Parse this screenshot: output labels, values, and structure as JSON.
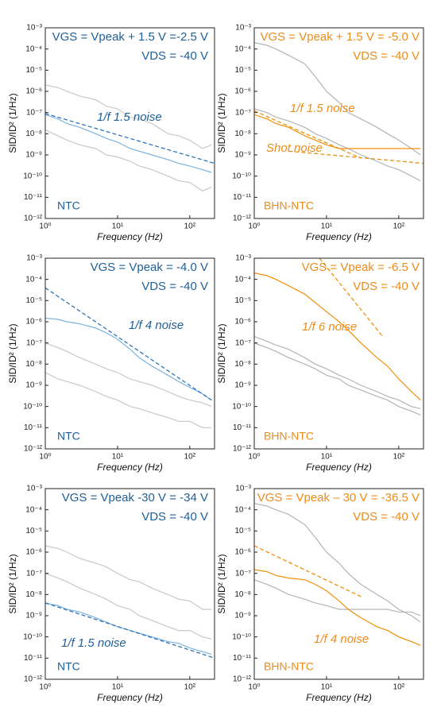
{
  "chart_data": [
    {
      "type": "line",
      "log_x": true,
      "log_y": true,
      "xlabel": "Frequency (Hz)",
      "ylabel": "SID/ID² (1/Hz)",
      "xlim": [
        1,
        220
      ],
      "ylim": [
        1e-12,
        0.001
      ],
      "xticks": [
        {
          "value": 1,
          "label": "10⁰"
        },
        {
          "value": 10,
          "label": "10¹"
        },
        {
          "value": 100,
          "label": "10²"
        }
      ],
      "yticks": [
        {
          "value": 1e-12,
          "label": "10⁻¹²"
        },
        {
          "value": 1e-11,
          "label": "10⁻¹¹"
        },
        {
          "value": 1e-10,
          "label": "10⁻¹⁰"
        },
        {
          "value": 1e-09,
          "label": "10⁻⁹"
        },
        {
          "value": 1e-08,
          "label": "10⁻⁸"
        },
        {
          "value": 1e-07,
          "label": "10⁻⁷"
        },
        {
          "value": 1e-06,
          "label": "10⁻⁶"
        },
        {
          "value": 1e-05,
          "label": "10⁻⁵"
        },
        {
          "value": 0.0001,
          "label": "10⁻⁴"
        },
        {
          "value": 0.001,
          "label": "10⁻³"
        }
      ],
      "annotation_color": "#1f5f99",
      "annotations": [
        "VGS = Vpeak + 1.5 V =-2.5 V",
        "VDS = -40 V",
        "NTC",
        "1/f 1.5 noise"
      ],
      "x": [
        1,
        1.5,
        2,
        3,
        5,
        7,
        10,
        15,
        20,
        30,
        50,
        70,
        100,
        150,
        200
      ],
      "series": [
        {
          "color": "#c8c8c8",
          "values": [
            2e-06,
            1.5e-06,
            1e-06,
            6e-07,
            4e-07,
            2e-07,
            1.5e-07,
            6e-08,
            5e-08,
            3e-08,
            1e-08,
            8e-09,
            5e-09,
            2e-09,
            3e-09
          ]
        },
        {
          "color": "#c8c8c8",
          "values": [
            1.5e-08,
            8e-09,
            5e-09,
            3e-09,
            2e-09,
            1e-09,
            8e-10,
            5e-10,
            3e-10,
            2e-10,
            1e-10,
            6e-11,
            5e-11,
            2e-11,
            3e-11
          ]
        },
        {
          "color": "#7ab3e0",
          "values": [
            8e-08,
            5e-08,
            3e-08,
            2e-08,
            1e-08,
            6e-09,
            4e-09,
            2e-09,
            1.5e-09,
            1e-09,
            6e-10,
            4e-10,
            3e-10,
            2e-10,
            1.5e-10
          ]
        },
        {
          "color": "#2e75b6",
          "dash": true,
          "x": [
            1,
            220
          ],
          "values": [
            9e-08,
            4e-10
          ]
        }
      ]
    },
    {
      "type": "line",
      "log_x": true,
      "log_y": true,
      "xlabel": "Frequency (Hz)",
      "ylabel": "SID/ID² (1/Hz)",
      "xlim": [
        1,
        220
      ],
      "ylim": [
        1e-12,
        0.001
      ],
      "xticks": [
        {
          "value": 1,
          "label": "10⁰"
        },
        {
          "value": 10,
          "label": "10¹"
        },
        {
          "value": 100,
          "label": "10²"
        }
      ],
      "yticks": [
        {
          "value": 1e-12,
          "label": "10⁻¹²"
        },
        {
          "value": 1e-11,
          "label": "10⁻¹¹"
        },
        {
          "value": 1e-10,
          "label": "10⁻¹⁰"
        },
        {
          "value": 1e-09,
          "label": "10⁻⁹"
        },
        {
          "value": 1e-08,
          "label": "10⁻⁸"
        },
        {
          "value": 1e-07,
          "label": "10⁻⁷"
        },
        {
          "value": 1e-06,
          "label": "10⁻⁶"
        },
        {
          "value": 1e-05,
          "label": "10⁻⁵"
        },
        {
          "value": 0.0001,
          "label": "10⁻⁴"
        },
        {
          "value": 0.001,
          "label": "10⁻³"
        }
      ],
      "annotation_color": "#ec8c1c",
      "annotations": [
        "VGS = Vpeak + 1.5 V = -5.0 V",
        "VDS = -40 V",
        "BHN-NTC",
        "1/f 1.5 noise",
        "Shot noise"
      ],
      "x": [
        1,
        1.5,
        2,
        3,
        5,
        7,
        10,
        15,
        20,
        30,
        50,
        70,
        100,
        150,
        200
      ],
      "series": [
        {
          "color": "#b4b4b4",
          "values": [
            0.0002,
            0.00015,
            0.0001,
            5e-05,
            2e-05,
            5e-06,
            1e-06,
            3e-07,
            1e-07,
            5e-08,
            2e-08,
            1e-08,
            5e-09,
            2e-09,
            1e-09
          ]
        },
        {
          "color": "#b4b4b4",
          "values": [
            1.5e-07,
            1e-07,
            6e-08,
            4e-08,
            2e-08,
            1e-08,
            6e-09,
            3e-09,
            2e-09,
            1e-09,
            5e-10,
            3e-10,
            2e-10,
            1e-10,
            6e-11
          ]
        },
        {
          "color": "#f0900a",
          "values": [
            8e-08,
            5e-08,
            3e-08,
            2e-08,
            8e-09,
            5e-09,
            3e-09,
            2e-09,
            2e-09,
            2e-09,
            2e-09,
            2e-09,
            2e-09,
            2e-09,
            2e-09
          ]
        },
        {
          "color": "#f0900a",
          "dash": true,
          "x": [
            1,
            30
          ],
          "values": [
            1.2e-07,
            7e-10
          ]
        },
        {
          "color": "#f0900a",
          "dash": true,
          "x": [
            3,
            220
          ],
          "values": [
            1.5e-09,
            4e-10
          ]
        }
      ]
    },
    {
      "type": "line",
      "log_x": true,
      "log_y": true,
      "xlabel": "Frequency (Hz)",
      "ylabel": "SID/ID² (1/Hz)",
      "xlim": [
        1,
        220
      ],
      "ylim": [
        1e-12,
        0.001
      ],
      "xticks": [
        {
          "value": 1,
          "label": "10⁰"
        },
        {
          "value": 10,
          "label": "10¹"
        },
        {
          "value": 100,
          "label": "10²"
        }
      ],
      "yticks": [
        {
          "value": 1e-12,
          "label": "10⁻¹²"
        },
        {
          "value": 1e-11,
          "label": "10⁻¹¹"
        },
        {
          "value": 1e-10,
          "label": "10⁻¹⁰"
        },
        {
          "value": 1e-09,
          "label": "10⁻⁹"
        },
        {
          "value": 1e-08,
          "label": "10⁻⁸"
        },
        {
          "value": 1e-07,
          "label": "10⁻⁷"
        },
        {
          "value": 1e-06,
          "label": "10⁻⁶"
        },
        {
          "value": 1e-05,
          "label": "10⁻⁵"
        },
        {
          "value": 0.0001,
          "label": "10⁻⁴"
        },
        {
          "value": 0.001,
          "label": "10⁻³"
        }
      ],
      "annotation_color": "#1f5f99",
      "annotations": [
        "VGS = Vpeak = -4.0 V",
        "VDS = -40 V",
        "NTC",
        "1/f 4 noise"
      ],
      "x": [
        1,
        1.5,
        2,
        3,
        5,
        7,
        10,
        15,
        20,
        30,
        50,
        70,
        100,
        150,
        200
      ],
      "series": [
        {
          "color": "#c8c8c8",
          "values": [
            1e-07,
            6e-08,
            4e-08,
            2e-08,
            1e-08,
            6e-09,
            4e-09,
            2e-09,
            1.5e-09,
            1e-09,
            5e-10,
            3e-10,
            2e-10,
            1.5e-10,
            1e-10
          ]
        },
        {
          "color": "#c8c8c8",
          "values": [
            4e-09,
            2e-09,
            1.5e-09,
            1e-09,
            5e-10,
            3e-10,
            2e-10,
            1e-10,
            8e-11,
            5e-11,
            3e-11,
            2e-11,
            2e-11,
            1e-11,
            1e-11
          ]
        },
        {
          "color": "#7ab3e0",
          "values": [
            1.5e-06,
            1.3e-06,
            1e-06,
            8e-07,
            5e-07,
            3e-07,
            1.5e-07,
            5e-08,
            2e-08,
            8e-09,
            3e-09,
            1.5e-09,
            8e-10,
            4e-10,
            2e-10
          ]
        },
        {
          "color": "#2e75b6",
          "dash": true,
          "x": [
            1,
            200
          ],
          "values": [
            4e-05,
            2e-10
          ]
        }
      ]
    },
    {
      "type": "line",
      "log_x": true,
      "log_y": true,
      "xlabel": "Frequency (Hz)",
      "ylabel": "SID/ID² (1/Hz)",
      "xlim": [
        1,
        220
      ],
      "ylim": [
        1e-12,
        0.001
      ],
      "xticks": [
        {
          "value": 1,
          "label": "10⁰"
        },
        {
          "value": 10,
          "label": "10¹"
        },
        {
          "value": 100,
          "label": "10²"
        }
      ],
      "yticks": [
        {
          "value": 1e-12,
          "label": "10⁻¹²"
        },
        {
          "value": 1e-11,
          "label": "10⁻¹¹"
        },
        {
          "value": 1e-10,
          "label": "10⁻¹⁰"
        },
        {
          "value": 1e-09,
          "label": "10⁻⁹"
        },
        {
          "value": 1e-08,
          "label": "10⁻⁸"
        },
        {
          "value": 1e-07,
          "label": "10⁻⁷"
        },
        {
          "value": 1e-06,
          "label": "10⁻⁶"
        },
        {
          "value": 1e-05,
          "label": "10⁻⁵"
        },
        {
          "value": 0.0001,
          "label": "10⁻⁴"
        },
        {
          "value": 0.001,
          "label": "10⁻³"
        }
      ],
      "annotation_color": "#ec8c1c",
      "annotations": [
        "VGS = Vpeak = -6.5 V",
        "VDS = -40 V",
        "BHN-NTC",
        "1/f 6 noise"
      ],
      "x": [
        1,
        1.5,
        2,
        3,
        5,
        7,
        10,
        15,
        20,
        30,
        50,
        70,
        100,
        150,
        200
      ],
      "series": [
        {
          "color": "#b4b4b4",
          "values": [
            2e-07,
            1.2e-07,
            8e-08,
            5e-08,
            2e-08,
            1e-08,
            6e-09,
            3e-09,
            2e-09,
            1e-09,
            5e-10,
            3e-10,
            2e-10,
            1e-10,
            8e-11
          ]
        },
        {
          "color": "#b4b4b4",
          "values": [
            1e-07,
            6e-08,
            4e-08,
            2e-08,
            1e-08,
            6e-09,
            3e-09,
            2e-09,
            1e-09,
            6e-10,
            3e-10,
            2e-10,
            1e-10,
            6e-11,
            4e-11
          ]
        },
        {
          "color": "#f0900a",
          "values": [
            0.0002,
            0.00015,
            0.0001,
            5e-05,
            2e-05,
            8e-06,
            3e-06,
            1e-06,
            4e-07,
            1e-07,
            2e-08,
            8e-09,
            2e-09,
            5e-10,
            2e-10
          ]
        },
        {
          "color": "#f0900a",
          "dash": true,
          "x": [
            8,
            60
          ],
          "values": [
            0.001,
            2e-07
          ]
        }
      ]
    },
    {
      "type": "line",
      "log_x": true,
      "log_y": true,
      "xlabel": "Frequency (Hz)",
      "ylabel": "SID/ID² (1/Hz)",
      "xlim": [
        1,
        220
      ],
      "ylim": [
        1e-12,
        0.001
      ],
      "xticks": [
        {
          "value": 1,
          "label": "10⁰"
        },
        {
          "value": 10,
          "label": "10¹"
        },
        {
          "value": 100,
          "label": "10²"
        }
      ],
      "yticks": [
        {
          "value": 1e-12,
          "label": "10⁻¹²"
        },
        {
          "value": 1e-11,
          "label": "10⁻¹¹"
        },
        {
          "value": 1e-10,
          "label": "10⁻¹⁰"
        },
        {
          "value": 1e-09,
          "label": "10⁻⁹"
        },
        {
          "value": 1e-08,
          "label": "10⁻⁸"
        },
        {
          "value": 1e-07,
          "label": "10⁻⁷"
        },
        {
          "value": 1e-06,
          "label": "10⁻⁶"
        },
        {
          "value": 1e-05,
          "label": "10⁻⁵"
        },
        {
          "value": 0.0001,
          "label": "10⁻⁴"
        },
        {
          "value": 0.001,
          "label": "10⁻³"
        }
      ],
      "annotation_color": "#1f5f99",
      "annotations": [
        "VGS = Vpeak -30 V = -34 V",
        "VDS = -40 V",
        "NTC",
        "1/f 1.5 noise"
      ],
      "x": [
        1,
        1.5,
        2,
        3,
        5,
        7,
        10,
        15,
        20,
        30,
        50,
        70,
        100,
        150,
        200
      ],
      "series": [
        {
          "color": "#c8c8c8",
          "values": [
            2e-06,
            1.5e-06,
            1e-06,
            5e-07,
            3e-07,
            2e-07,
            1e-07,
            5e-08,
            4e-08,
            2e-08,
            1e-08,
            6e-09,
            5e-09,
            2e-09,
            2e-09
          ]
        },
        {
          "color": "#c8c8c8",
          "values": [
            1e-07,
            6e-08,
            4e-08,
            2e-08,
            1e-08,
            6e-09,
            3e-09,
            2e-09,
            1e-09,
            6e-10,
            3e-10,
            2e-10,
            2e-10,
            1e-10,
            8e-11
          ]
        },
        {
          "color": "#7ab3e0",
          "values": [
            4e-09,
            3e-09,
            2e-09,
            1.5e-09,
            8e-10,
            5e-10,
            3e-10,
            2e-10,
            1.5e-10,
            1e-10,
            6e-11,
            5e-11,
            3e-11,
            2e-11,
            1.5e-11
          ]
        },
        {
          "color": "#2e75b6",
          "dash": true,
          "x": [
            1,
            220
          ],
          "values": [
            4e-09,
            1e-11
          ]
        }
      ]
    },
    {
      "type": "line",
      "log_x": true,
      "log_y": true,
      "xlabel": "Frequency (Hz)",
      "ylabel": "SID/ID² (1/Hz)",
      "xlim": [
        1,
        220
      ],
      "ylim": [
        1e-12,
        0.001
      ],
      "xticks": [
        {
          "value": 1,
          "label": "10⁰"
        },
        {
          "value": 10,
          "label": "10¹"
        },
        {
          "value": 100,
          "label": "10²"
        }
      ],
      "yticks": [
        {
          "value": 1e-12,
          "label": "10⁻¹²"
        },
        {
          "value": 1e-11,
          "label": "10⁻¹¹"
        },
        {
          "value": 1e-10,
          "label": "10⁻¹⁰"
        },
        {
          "value": 1e-09,
          "label": "10⁻⁹"
        },
        {
          "value": 1e-08,
          "label": "10⁻⁸"
        },
        {
          "value": 1e-07,
          "label": "10⁻⁷"
        },
        {
          "value": 1e-06,
          "label": "10⁻⁶"
        },
        {
          "value": 1e-05,
          "label": "10⁻⁵"
        },
        {
          "value": 0.0001,
          "label": "10⁻⁴"
        },
        {
          "value": 0.001,
          "label": "10⁻³"
        }
      ],
      "annotation_color": "#ec8c1c",
      "annotations": [
        "VGS = Vpeak – 30 V = -36.5 V",
        "VDS = -40 V",
        "BHN-NTC",
        "1/f 4 noise"
      ],
      "x": [
        1,
        1.5,
        2,
        3,
        5,
        7,
        10,
        15,
        20,
        30,
        50,
        70,
        100,
        150,
        200
      ],
      "series": [
        {
          "color": "#b4b4b4",
          "values": [
            0.0002,
            0.00015,
            0.0001,
            6e-05,
            2e-05,
            5e-06,
            1e-06,
            3e-07,
            1e-07,
            3e-08,
            1e-08,
            5e-09,
            2e-09,
            1e-09,
            5e-10
          ]
        },
        {
          "color": "#b4b4b4",
          "values": [
            5e-08,
            3e-08,
            2e-08,
            1e-08,
            6e-09,
            4e-09,
            3e-09,
            2e-09,
            2e-09,
            2e-09,
            2e-09,
            2e-09,
            1.5e-09,
            1.5e-09,
            1e-09
          ]
        },
        {
          "color": "#f0900a",
          "values": [
            1.5e-07,
            1.2e-07,
            8e-08,
            6e-08,
            5e-08,
            3e-08,
            1.5e-08,
            5e-09,
            2e-09,
            8e-10,
            3e-10,
            2e-10,
            1e-10,
            6e-11,
            4e-11
          ]
        },
        {
          "color": "#f0900a",
          "dash": true,
          "x": [
            1,
            30
          ],
          "values": [
            2e-06,
            8e-09
          ]
        }
      ]
    }
  ]
}
